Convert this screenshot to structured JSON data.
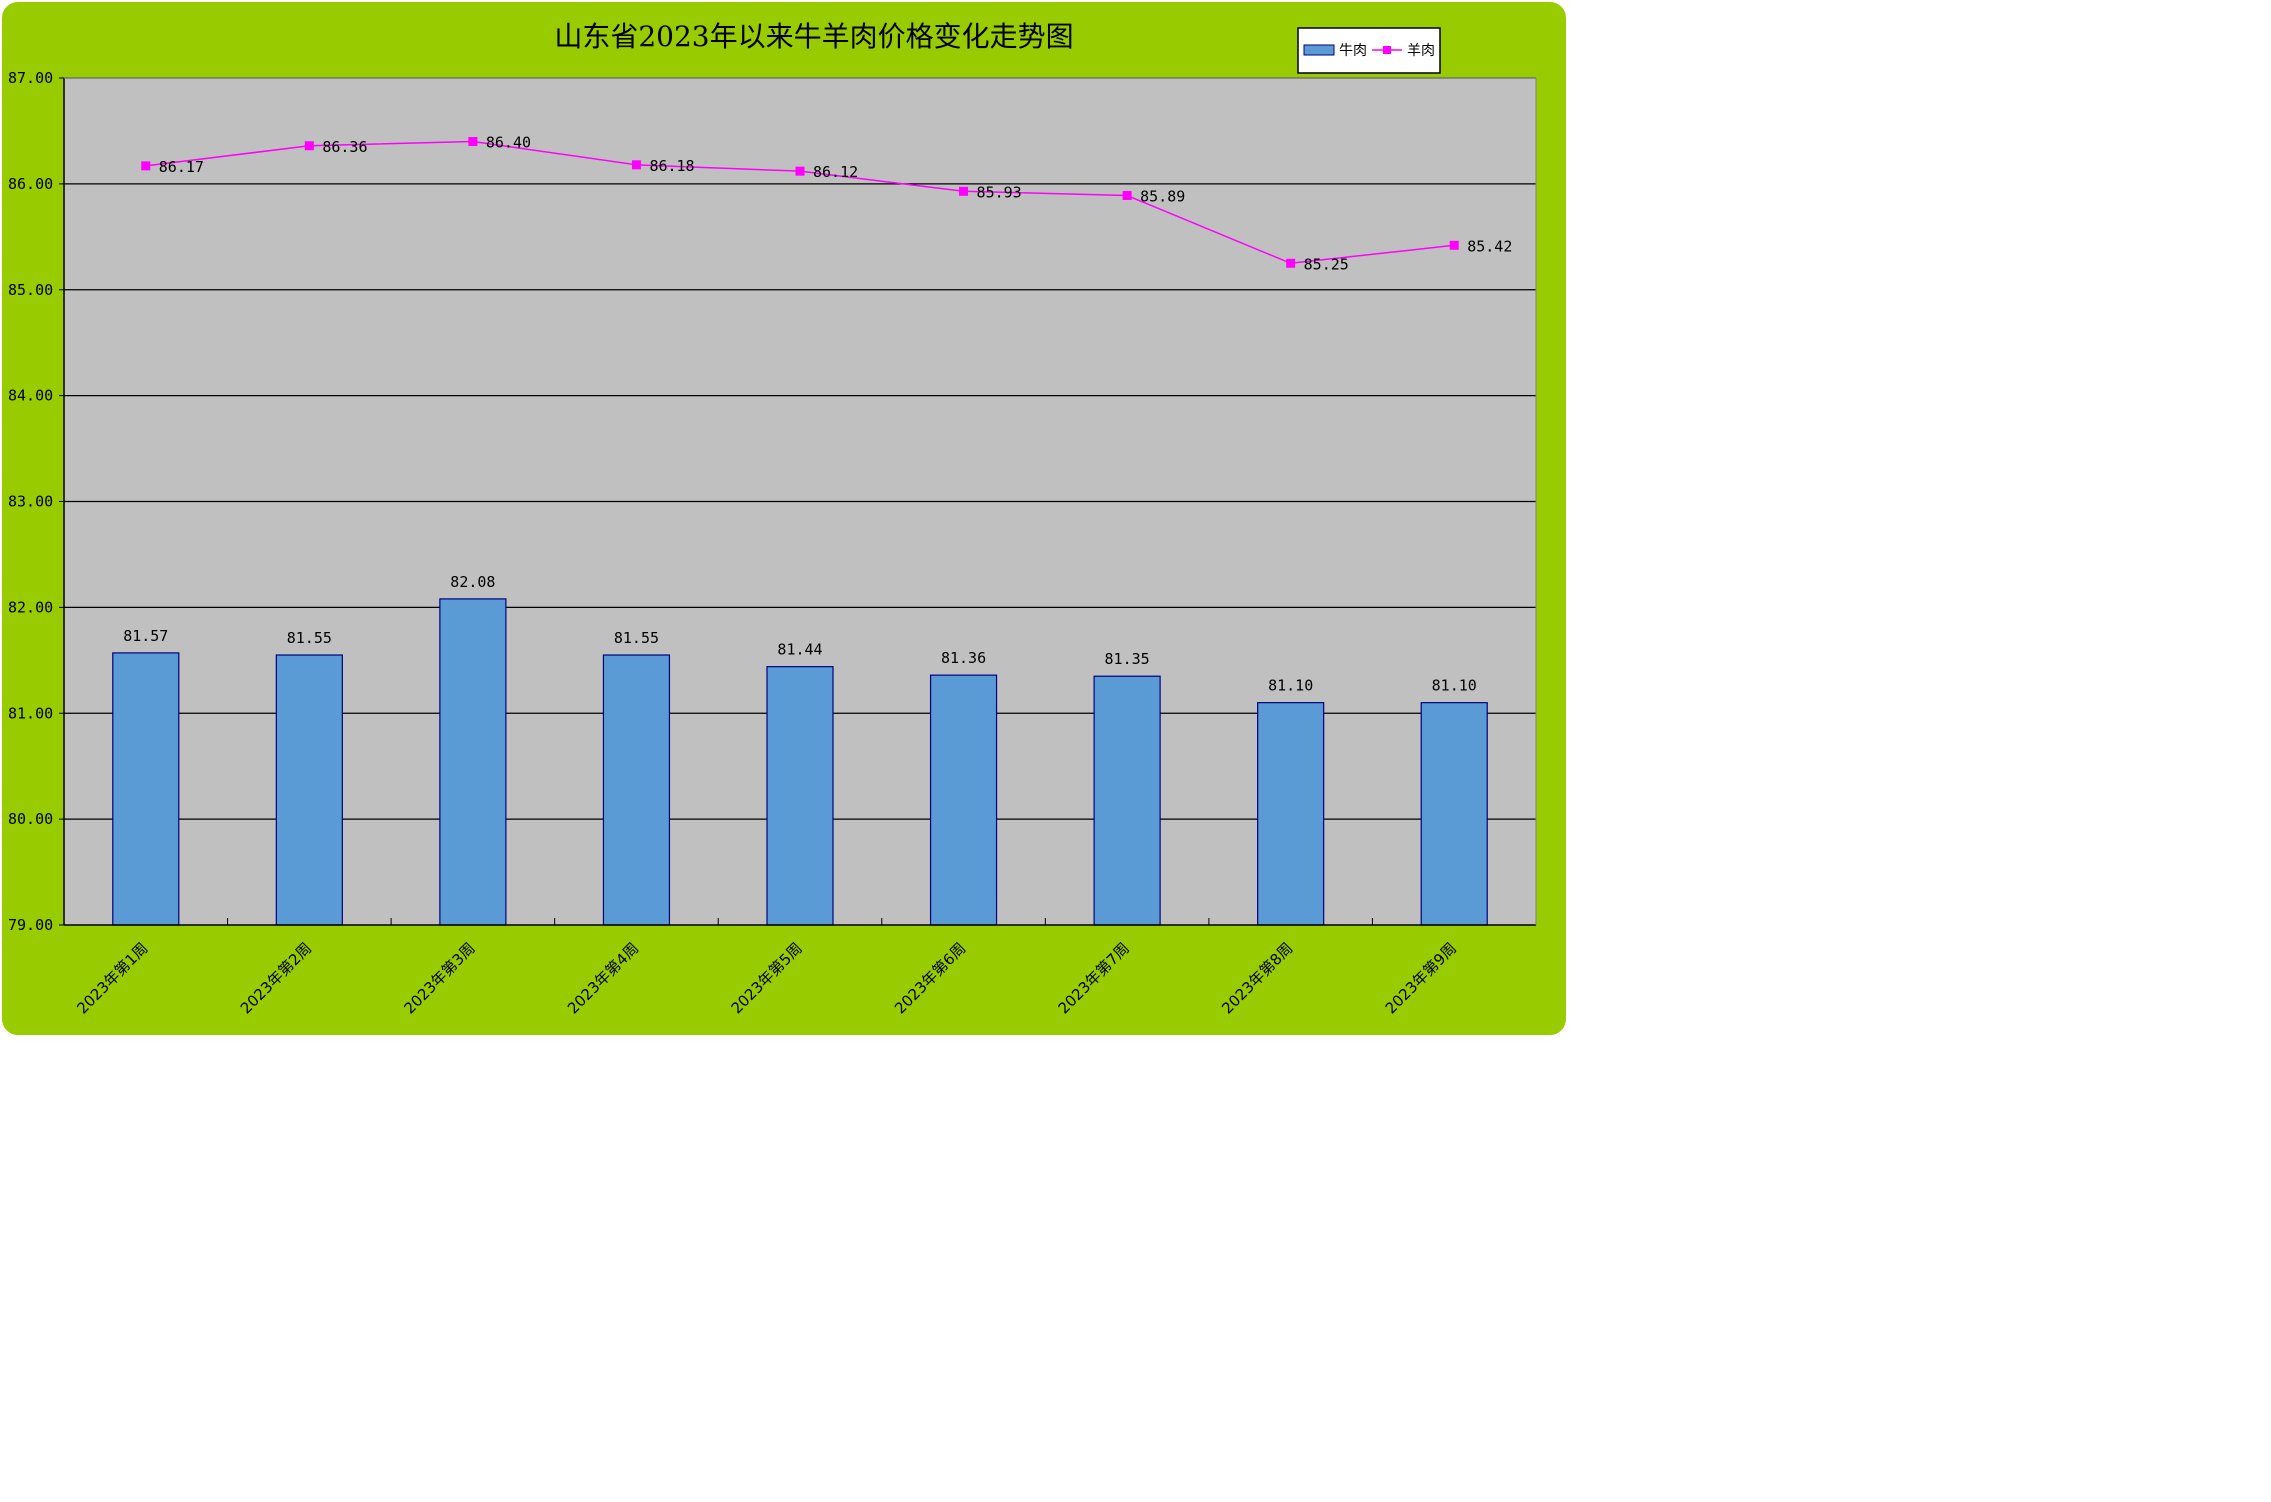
{
  "chart_data": {
    "type": "bar",
    "title": "山东省2023年以来牛羊肉价格变化走势图",
    "categories": [
      "2023年第1周",
      "2023年第2周",
      "2023年第3周",
      "2023年第4周",
      "2023年第5周",
      "2023年第6周",
      "2023年第7周",
      "2023年第8周",
      "2023年第9周"
    ],
    "series": [
      {
        "name": "牛肉",
        "type": "bar",
        "color": "#5b9bd5",
        "values": [
          81.57,
          81.55,
          82.08,
          81.55,
          81.44,
          81.36,
          81.35,
          81.1,
          81.1
        ]
      },
      {
        "name": "羊肉",
        "type": "line",
        "color": "#ff00ff",
        "values": [
          86.17,
          86.36,
          86.4,
          86.18,
          86.12,
          85.93,
          85.89,
          85.25,
          85.42
        ]
      }
    ],
    "ylim": [
      79,
      87
    ],
    "yticks": [
      "79.00",
      "80.00",
      "81.00",
      "82.00",
      "83.00",
      "84.00",
      "85.00",
      "86.00",
      "87.00"
    ],
    "value_labels": {
      "牛肉": [
        "81.57",
        "81.55",
        "82.08",
        "81.55",
        "81.44",
        "81.36",
        "81.35",
        "81.10",
        "81.10"
      ],
      "羊肉": [
        "86.17",
        "86.36",
        "86.40",
        "86.18",
        "86.12",
        "85.93",
        "85.89",
        "85.25",
        "85.42"
      ]
    },
    "grid": true,
    "legend_position": "top-right",
    "plot_background": "#c0c0c0",
    "outer_background": "#99cc00"
  }
}
